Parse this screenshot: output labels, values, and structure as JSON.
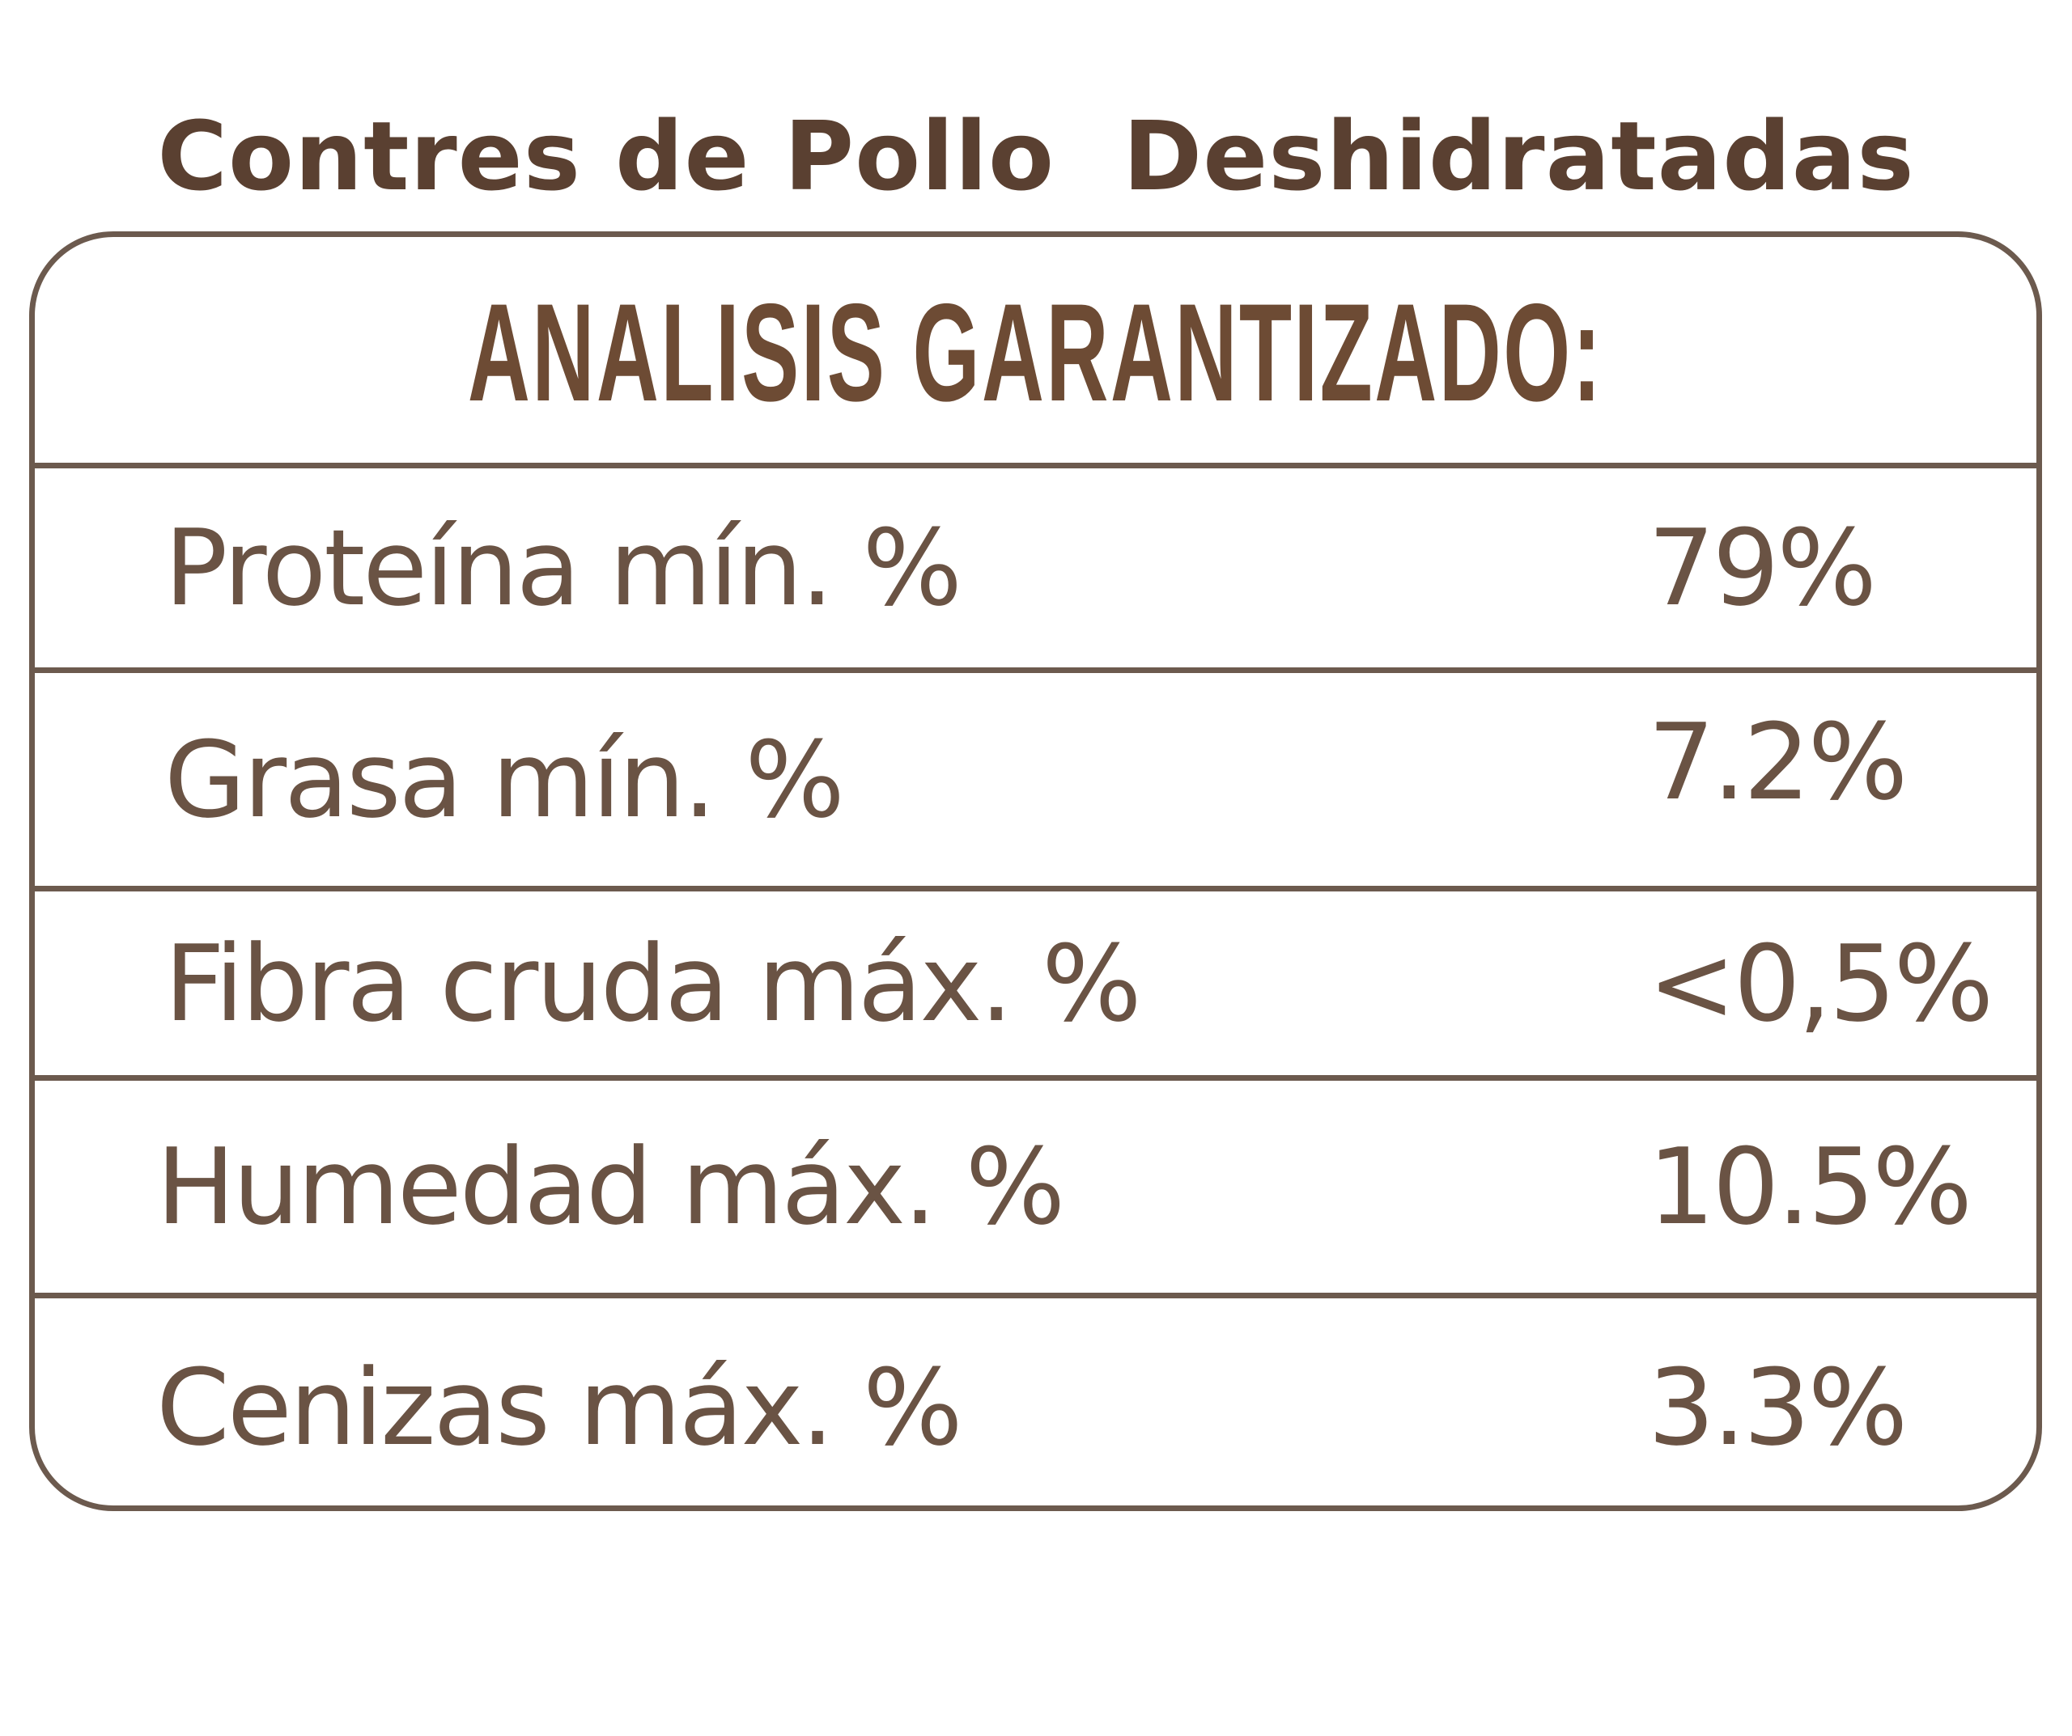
{
  "product": {
    "title": "Contres de Pollo  Deshidratadas"
  },
  "analysis": {
    "heading": "ANALISIS GARANTIZADO:",
    "rows": [
      {
        "label": "Proteína mín. %",
        "value": "79%"
      },
      {
        "label": "Grasa mín. %",
        "value": "7.2%"
      },
      {
        "label": "Fibra cruda máx. %",
        "value": "<0,5%"
      },
      {
        "label": "Humedad máx. %",
        "value": "10.5%"
      },
      {
        "label": "Cenizas máx. %",
        "value": "3.3%"
      }
    ]
  },
  "colors": {
    "title": "#5a4031",
    "heading": "#6d4b34",
    "text": "#6a5344",
    "border": "#6c5a4e",
    "background": "#ffffff"
  }
}
